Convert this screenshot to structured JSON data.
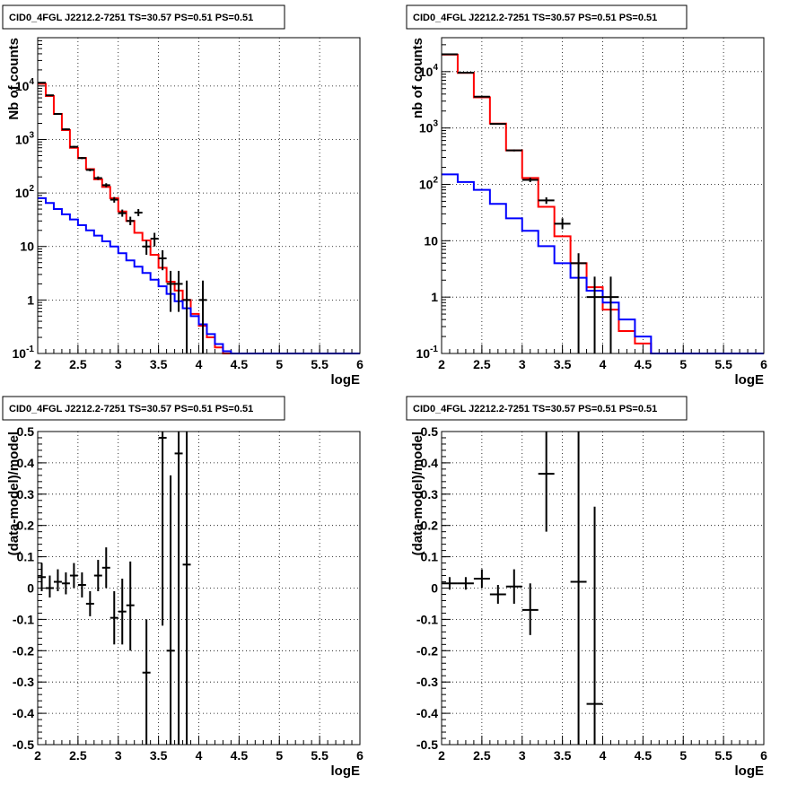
{
  "chart_data": [
    {
      "type": "histogram",
      "title": "CID0_4FGL J2212.2-7251 TS=30.57 PS=0.51 PS=0.51",
      "xlabel": "logE",
      "ylabel": "Nb of counts",
      "xlim": [
        2,
        6
      ],
      "ylim": [
        0.1,
        80000
      ],
      "yscale": "log",
      "grid": true,
      "x_ticks": [
        "2",
        "2.5",
        "3",
        "3.5",
        "4",
        "4.5",
        "5",
        "5.5",
        "6"
      ],
      "y_ticks": [
        "10^-1",
        "1",
        "10",
        "10^2",
        "10^3",
        "10^4"
      ],
      "bin_edges": [
        2.0,
        2.1,
        2.2,
        2.3,
        2.4,
        2.5,
        2.6,
        2.7,
        2.8,
        2.9,
        3.0,
        3.1,
        3.2,
        3.3,
        3.4,
        3.5,
        3.6,
        3.7,
        3.8,
        3.9,
        4.0,
        4.1,
        4.2,
        4.3,
        4.4,
        4.5,
        4.6,
        4.7,
        4.8,
        4.9,
        5.0,
        5.1,
        5.2,
        5.3,
        5.4,
        5.5,
        5.6,
        5.7,
        5.8,
        5.9,
        6.0
      ],
      "series": [
        {
          "color": "#ff0000",
          "kind": "step",
          "values": [
            11000,
            6500,
            3000,
            1500,
            700,
            450,
            280,
            180,
            130,
            80,
            45,
            30,
            18,
            13,
            7,
            4,
            2.2,
            1.5,
            1.0,
            0.55,
            0.33,
            0.2,
            0.13,
            0.1,
            0.1,
            0.1,
            0.1,
            0.1,
            0.1,
            0.1,
            0.1,
            0.1,
            0.1,
            0.1,
            0.1,
            0.1,
            0.1,
            0.1,
            0.1,
            0.1
          ]
        },
        {
          "color": "#0000ff",
          "kind": "step",
          "values": [
            80,
            65,
            50,
            40,
            32,
            25,
            20,
            16,
            12.5,
            10,
            7.5,
            5.5,
            4.2,
            3.2,
            2.4,
            1.8,
            1.3,
            0.95,
            0.7,
            0.5,
            0.35,
            0.23,
            0.15,
            0.11,
            0.1,
            0.1,
            0.1,
            0.1,
            0.1,
            0.1,
            0.1,
            0.1,
            0.1,
            0.1,
            0.1,
            0.1,
            0.1,
            0.1,
            0.1,
            0.1
          ]
        },
        {
          "color": "#000000",
          "kind": "errorbar",
          "points": [
            {
              "x": 2.05,
              "y": 11500,
              "xerr": 0.05,
              "ylo": 11300,
              "yhi": 11700
            },
            {
              "x": 2.15,
              "y": 6700,
              "xerr": 0.05,
              "ylo": 6550,
              "yhi": 6850
            },
            {
              "x": 2.25,
              "y": 3000,
              "xerr": 0.05,
              "ylo": 2900,
              "yhi": 3100
            },
            {
              "x": 2.35,
              "y": 1550,
              "xerr": 0.05,
              "ylo": 1500,
              "yhi": 1600
            },
            {
              "x": 2.45,
              "y": 730,
              "xerr": 0.05,
              "ylo": 700,
              "yhi": 760
            },
            {
              "x": 2.55,
              "y": 450,
              "xerr": 0.05,
              "ylo": 430,
              "yhi": 470
            },
            {
              "x": 2.65,
              "y": 270,
              "xerr": 0.05,
              "ylo": 255,
              "yhi": 285
            },
            {
              "x": 2.75,
              "y": 190,
              "xerr": 0.05,
              "ylo": 176,
              "yhi": 204
            },
            {
              "x": 2.85,
              "y": 140,
              "xerr": 0.05,
              "ylo": 128,
              "yhi": 152
            },
            {
              "x": 2.95,
              "y": 75,
              "xerr": 0.05,
              "ylo": 66,
              "yhi": 84
            },
            {
              "x": 3.05,
              "y": 42,
              "xerr": 0.05,
              "ylo": 36,
              "yhi": 49
            },
            {
              "x": 3.15,
              "y": 30,
              "xerr": 0.05,
              "ylo": 25,
              "yhi": 36
            },
            {
              "x": 3.25,
              "y": 43,
              "xerr": 0.05,
              "ylo": 37,
              "yhi": 50
            },
            {
              "x": 3.35,
              "y": 10,
              "xerr": 0.05,
              "ylo": 7,
              "yhi": 13
            },
            {
              "x": 3.45,
              "y": 14,
              "xerr": 0.05,
              "ylo": 10,
              "yhi": 18
            },
            {
              "x": 3.55,
              "y": 6,
              "xerr": 0.05,
              "ylo": 3.6,
              "yhi": 8.5
            },
            {
              "x": 3.65,
              "y": 2,
              "xerr": 0.05,
              "ylo": 0.6,
              "yhi": 3.5
            },
            {
              "x": 3.75,
              "y": 2,
              "xerr": 0.05,
              "ylo": 0.6,
              "yhi": 3.5
            },
            {
              "x": 3.85,
              "y": 1,
              "xerr": 0.05,
              "ylo": 0.1,
              "yhi": 2.3
            },
            {
              "x": 4.05,
              "y": 1,
              "xerr": 0.05,
              "ylo": 0.1,
              "yhi": 2.3
            }
          ]
        }
      ]
    },
    {
      "type": "histogram",
      "title": "CID0_4FGL J2212.2-7251 TS=30.57 PS=0.51 PS=0.51",
      "xlabel": "logE",
      "ylabel": "nb of counts",
      "xlim": [
        2,
        6
      ],
      "ylim": [
        0.1,
        40000
      ],
      "yscale": "log",
      "grid": true,
      "x_ticks": [
        "2",
        "2.5",
        "3",
        "3.5",
        "4",
        "4.5",
        "5",
        "5.5",
        "6"
      ],
      "y_ticks": [
        "10^-1",
        "1",
        "10",
        "10^2",
        "10^3",
        "10^4"
      ],
      "bin_edges": [
        2.0,
        2.2,
        2.4,
        2.6,
        2.8,
        3.0,
        3.2,
        3.4,
        3.6,
        3.8,
        4.0,
        4.2,
        4.4,
        4.6,
        4.8,
        5.0,
        5.2,
        5.4,
        5.6,
        5.8,
        6.0
      ],
      "series": [
        {
          "color": "#ff0000",
          "kind": "step",
          "values": [
            20000,
            9500,
            3500,
            1200,
            400,
            130,
            40,
            12,
            4,
            1.5,
            0.6,
            0.25,
            0.15,
            0.1,
            0.1,
            0.1,
            0.1,
            0.1,
            0.1,
            0.1
          ]
        },
        {
          "color": "#0000ff",
          "kind": "step",
          "values": [
            150,
            110,
            80,
            45,
            25,
            15,
            8,
            4,
            2.2,
            1.3,
            0.8,
            0.4,
            0.2,
            0.1,
            0.1,
            0.1,
            0.1,
            0.1,
            0.1,
            0.1
          ]
        },
        {
          "color": "#000000",
          "kind": "errorbar",
          "points": [
            {
              "x": 2.1,
              "y": 20300,
              "xerr": 0.1,
              "ylo": 20100,
              "yhi": 20500
            },
            {
              "x": 2.3,
              "y": 9600,
              "xerr": 0.1,
              "ylo": 9500,
              "yhi": 9700
            },
            {
              "x": 2.5,
              "y": 3600,
              "xerr": 0.1,
              "ylo": 3540,
              "yhi": 3660
            },
            {
              "x": 2.7,
              "y": 1180,
              "xerr": 0.1,
              "ylo": 1150,
              "yhi": 1210
            },
            {
              "x": 2.9,
              "y": 400,
              "xerr": 0.1,
              "ylo": 385,
              "yhi": 415
            },
            {
              "x": 3.1,
              "y": 120,
              "xerr": 0.1,
              "ylo": 110,
              "yhi": 131
            },
            {
              "x": 3.3,
              "y": 52,
              "xerr": 0.1,
              "ylo": 45,
              "yhi": 59
            },
            {
              "x": 3.5,
              "y": 20,
              "xerr": 0.1,
              "ylo": 16,
              "yhi": 25
            },
            {
              "x": 3.7,
              "y": 4,
              "xerr": 0.1,
              "ylo": 0.1,
              "yhi": 6
            },
            {
              "x": 3.9,
              "y": 1,
              "xerr": 0.1,
              "ylo": 0.1,
              "yhi": 2.3
            },
            {
              "x": 4.1,
              "y": 1,
              "xerr": 0.1,
              "ylo": 0.1,
              "yhi": 2.3
            }
          ]
        }
      ]
    },
    {
      "type": "scatter",
      "title": "CID0_4FGL J2212.2-7251 TS=30.57 PS=0.51 PS=0.51",
      "xlabel": "logE",
      "ylabel": "(data-model)/model",
      "xlim": [
        2,
        6
      ],
      "ylim": [
        -0.5,
        0.5
      ],
      "yscale": "linear",
      "grid": true,
      "x_ticks": [
        "2",
        "2.5",
        "3",
        "3.5",
        "4",
        "4.5",
        "5",
        "5.5",
        "6"
      ],
      "y_ticks": [
        "-0.5",
        "-0.4",
        "-0.3",
        "-0.2",
        "-0.1",
        "0",
        "0.1",
        "0.2",
        "0.3",
        "0.4",
        "0.5"
      ],
      "series": [
        {
          "color": "#000000",
          "kind": "errorbar",
          "points": [
            {
              "x": 2.05,
              "y": 0.035,
              "xerr": 0.05,
              "ylo": -0.01,
              "yhi": 0.08
            },
            {
              "x": 2.15,
              "y": 0.0,
              "xerr": 0.05,
              "ylo": -0.03,
              "yhi": 0.04
            },
            {
              "x": 2.25,
              "y": 0.02,
              "xerr": 0.05,
              "ylo": -0.01,
              "yhi": 0.06
            },
            {
              "x": 2.35,
              "y": 0.015,
              "xerr": 0.05,
              "ylo": -0.02,
              "yhi": 0.05
            },
            {
              "x": 2.45,
              "y": 0.04,
              "xerr": 0.05,
              "ylo": 0.0,
              "yhi": 0.08
            },
            {
              "x": 2.55,
              "y": 0.01,
              "xerr": 0.05,
              "ylo": -0.03,
              "yhi": 0.05
            },
            {
              "x": 2.65,
              "y": -0.05,
              "xerr": 0.05,
              "ylo": -0.09,
              "yhi": -0.01
            },
            {
              "x": 2.75,
              "y": 0.04,
              "xerr": 0.05,
              "ylo": -0.01,
              "yhi": 0.09
            },
            {
              "x": 2.85,
              "y": 0.065,
              "xerr": 0.05,
              "ylo": 0.0,
              "yhi": 0.13
            },
            {
              "x": 2.95,
              "y": -0.095,
              "xerr": 0.05,
              "ylo": -0.18,
              "yhi": -0.01
            },
            {
              "x": 3.05,
              "y": -0.075,
              "xerr": 0.05,
              "ylo": -0.18,
              "yhi": 0.03
            },
            {
              "x": 3.15,
              "y": -0.055,
              "xerr": 0.05,
              "ylo": -0.2,
              "yhi": 0.085
            },
            {
              "x": 3.35,
              "y": -0.27,
              "xerr": 0.05,
              "ylo": -0.5,
              "yhi": -0.1
            },
            {
              "x": 3.55,
              "y": 0.48,
              "xerr": 0.05,
              "ylo": -0.12,
              "yhi": 0.5
            },
            {
              "x": 3.65,
              "y": -0.2,
              "xerr": 0.05,
              "ylo": -0.5,
              "yhi": 0.36
            },
            {
              "x": 3.75,
              "y": 0.43,
              "xerr": 0.05,
              "ylo": -0.5,
              "yhi": 0.5
            },
            {
              "x": 3.85,
              "y": 0.075,
              "xerr": 0.05,
              "ylo": -0.5,
              "yhi": 0.5
            }
          ]
        }
      ]
    },
    {
      "type": "scatter",
      "title": "CID0_4FGL J2212.2-7251 TS=30.57 PS=0.51 PS=0.51",
      "xlabel": "logE",
      "ylabel": "(data-model)/model",
      "xlim": [
        2,
        6
      ],
      "ylim": [
        -0.5,
        0.5
      ],
      "yscale": "linear",
      "grid": true,
      "x_ticks": [
        "2",
        "2.5",
        "3",
        "3.5",
        "4",
        "4.5",
        "5",
        "5.5",
        "6"
      ],
      "y_ticks": [
        "-0.5",
        "-0.4",
        "-0.3",
        "-0.2",
        "-0.1",
        "0",
        "0.1",
        "0.2",
        "0.3",
        "0.4",
        "0.5"
      ],
      "series": [
        {
          "color": "#000000",
          "kind": "errorbar",
          "points": [
            {
              "x": 2.1,
              "y": 0.015,
              "xerr": 0.1,
              "ylo": -0.005,
              "yhi": 0.035
            },
            {
              "x": 2.3,
              "y": 0.015,
              "xerr": 0.1,
              "ylo": -0.005,
              "yhi": 0.035
            },
            {
              "x": 2.5,
              "y": 0.03,
              "xerr": 0.1,
              "ylo": 0.0,
              "yhi": 0.06
            },
            {
              "x": 2.7,
              "y": -0.02,
              "xerr": 0.1,
              "ylo": -0.05,
              "yhi": 0.01
            },
            {
              "x": 2.9,
              "y": 0.005,
              "xerr": 0.1,
              "ylo": -0.05,
              "yhi": 0.06
            },
            {
              "x": 3.1,
              "y": -0.07,
              "xerr": 0.1,
              "ylo": -0.15,
              "yhi": 0.015
            },
            {
              "x": 3.3,
              "y": 0.365,
              "xerr": 0.1,
              "ylo": 0.18,
              "yhi": 0.5
            },
            {
              "x": 3.7,
              "y": 0.02,
              "xerr": 0.1,
              "ylo": -0.5,
              "yhi": 0.5
            },
            {
              "x": 3.9,
              "y": -0.37,
              "xerr": 0.1,
              "ylo": -0.5,
              "yhi": 0.26
            }
          ]
        }
      ]
    }
  ]
}
